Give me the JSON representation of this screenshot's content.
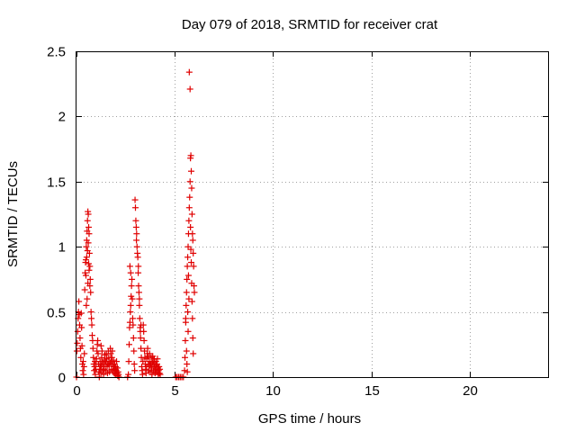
{
  "chart_data": {
    "type": "scatter",
    "title": "Day 079 of 2018, SRMTID for receiver crat",
    "xlabel": "GPS time / hours",
    "ylabel": "SRMTID / TECUs",
    "xlim": [
      0,
      24
    ],
    "ylim": [
      0,
      2.5
    ],
    "xticks": [
      0,
      5,
      10,
      15,
      20
    ],
    "xtick_labels": [
      "0",
      "5",
      "10",
      "15",
      "20"
    ],
    "yticks": [
      0,
      0.5,
      1,
      1.5,
      2,
      2.5
    ],
    "ytick_labels": [
      "0",
      "0.5",
      "1",
      "1.5",
      "2",
      "2.5"
    ],
    "grid": true,
    "marker": "+",
    "color": "#e00000",
    "series": [
      {
        "name": "SRMTID",
        "points": [
          [
            0.0,
            0.0
          ],
          [
            0.02,
            0.2
          ],
          [
            0.04,
            0.26
          ],
          [
            0.06,
            0.35
          ],
          [
            0.08,
            0.45
          ],
          [
            0.1,
            0.5
          ],
          [
            0.12,
            0.58
          ],
          [
            0.14,
            0.48
          ],
          [
            0.16,
            0.4
          ],
          [
            0.18,
            0.3
          ],
          [
            0.2,
            0.22
          ],
          [
            0.22,
            0.15
          ],
          [
            0.24,
            0.49
          ],
          [
            0.26,
            0.38
          ],
          [
            0.28,
            0.24
          ],
          [
            0.3,
            0.1
          ],
          [
            0.32,
            0.05
          ],
          [
            0.34,
            0.12
          ],
          [
            0.36,
            0.02
          ],
          [
            0.38,
            0.08
          ],
          [
            0.4,
            0.18
          ],
          [
            0.42,
            0.67
          ],
          [
            0.44,
            0.8
          ],
          [
            0.46,
            0.88
          ],
          [
            0.48,
            0.9
          ],
          [
            0.5,
            1.0
          ],
          [
            0.52,
            1.05
          ],
          [
            0.54,
            1.12
          ],
          [
            0.56,
            1.2
          ],
          [
            0.58,
            1.27
          ],
          [
            0.6,
            1.25
          ],
          [
            0.62,
            1.15
          ],
          [
            0.64,
            1.1
          ],
          [
            0.66,
            0.95
          ],
          [
            0.68,
            0.85
          ],
          [
            0.7,
            0.75
          ],
          [
            0.72,
            0.65
          ],
          [
            0.74,
            0.5
          ],
          [
            0.76,
            0.45
          ],
          [
            0.78,
            0.4
          ],
          [
            0.48,
            0.78
          ],
          [
            0.52,
            0.92
          ],
          [
            0.56,
            0.97
          ],
          [
            0.6,
            1.03
          ],
          [
            0.64,
            0.82
          ],
          [
            0.68,
            0.7
          ],
          [
            0.5,
            0.55
          ],
          [
            0.54,
            0.6
          ],
          [
            0.58,
            0.72
          ],
          [
            0.62,
            0.87
          ],
          [
            0.8,
            0.32
          ],
          [
            0.82,
            0.28
          ],
          [
            0.84,
            0.22
          ],
          [
            0.86,
            0.15
          ],
          [
            0.88,
            0.1
          ],
          [
            0.9,
            0.05
          ],
          [
            0.92,
            0.08
          ],
          [
            0.94,
            0.12
          ],
          [
            0.96,
            0.02
          ],
          [
            0.98,
            0.06
          ],
          [
            1.0,
            0.1
          ],
          [
            1.02,
            0.14
          ],
          [
            1.04,
            0.2
          ],
          [
            1.06,
            0.25
          ],
          [
            1.08,
            0.28
          ],
          [
            1.1,
            0.18
          ],
          [
            1.12,
            0.1
          ],
          [
            1.14,
            0.04
          ],
          [
            1.16,
            0.0
          ],
          [
            1.18,
            0.06
          ],
          [
            1.2,
            0.12
          ],
          [
            1.22,
            0.08
          ],
          [
            1.24,
            0.03
          ],
          [
            1.26,
            0.09
          ],
          [
            1.28,
            0.15
          ],
          [
            1.3,
            0.2
          ],
          [
            1.32,
            0.12
          ],
          [
            1.34,
            0.05
          ],
          [
            1.36,
            0.1
          ],
          [
            1.38,
            0.02
          ],
          [
            1.4,
            0.06
          ],
          [
            1.42,
            0.13
          ],
          [
            1.44,
            0.17
          ],
          [
            1.46,
            0.1
          ],
          [
            1.48,
            0.05
          ],
          [
            1.5,
            0.12
          ],
          [
            1.52,
            0.18
          ],
          [
            1.54,
            0.14
          ],
          [
            1.56,
            0.08
          ],
          [
            1.58,
            0.03
          ],
          [
            1.6,
            0.1
          ],
          [
            1.62,
            0.2
          ],
          [
            1.64,
            0.15
          ],
          [
            1.66,
            0.09
          ],
          [
            1.68,
            0.04
          ],
          [
            1.7,
            0.11
          ],
          [
            1.72,
            0.22
          ],
          [
            1.74,
            0.18
          ],
          [
            1.76,
            0.12
          ],
          [
            1.78,
            0.06
          ],
          [
            1.8,
            0.15
          ],
          [
            1.82,
            0.2
          ],
          [
            1.84,
            0.1
          ],
          [
            1.86,
            0.05
          ],
          [
            1.88,
            0.13
          ],
          [
            1.9,
            0.08
          ],
          [
            1.92,
            0.03
          ],
          [
            1.94,
            0.1
          ],
          [
            1.96,
            0.06
          ],
          [
            1.98,
            0.02
          ],
          [
            2.0,
            0.08
          ],
          [
            2.02,
            0.05
          ],
          [
            2.04,
            0.12
          ],
          [
            2.06,
            0.03
          ],
          [
            2.08,
            0.07
          ],
          [
            2.1,
            0.01
          ],
          [
            2.12,
            0.04
          ],
          [
            2.14,
            0.02
          ],
          [
            2.16,
            0.0
          ],
          [
            1.25,
            0.24
          ],
          [
            2.6,
            0.0
          ],
          [
            2.64,
            0.02
          ],
          [
            2.66,
            0.12
          ],
          [
            2.68,
            0.25
          ],
          [
            2.7,
            0.38
          ],
          [
            2.72,
            0.42
          ],
          [
            2.74,
            0.5
          ],
          [
            2.76,
            0.55
          ],
          [
            2.78,
            0.62
          ],
          [
            2.8,
            0.7
          ],
          [
            2.72,
            0.85
          ],
          [
            2.76,
            0.8
          ],
          [
            2.82,
            0.75
          ],
          [
            2.84,
            0.6
          ],
          [
            2.86,
            0.45
          ],
          [
            2.88,
            0.4
          ],
          [
            2.9,
            0.3
          ],
          [
            2.92,
            0.2
          ],
          [
            2.94,
            0.1
          ],
          [
            2.96,
            0.05
          ],
          [
            2.98,
            1.36
          ],
          [
            3.0,
            1.3
          ],
          [
            3.02,
            1.2
          ],
          [
            3.04,
            1.15
          ],
          [
            3.06,
            1.1
          ],
          [
            3.08,
            1.0
          ],
          [
            3.1,
            0.95
          ],
          [
            3.12,
            0.92
          ],
          [
            3.14,
            0.8
          ],
          [
            3.16,
            0.7
          ],
          [
            3.18,
            0.65
          ],
          [
            3.2,
            0.55
          ],
          [
            3.22,
            0.45
          ],
          [
            3.24,
            0.38
          ],
          [
            3.26,
            0.3
          ],
          [
            3.28,
            0.22
          ],
          [
            3.3,
            0.15
          ],
          [
            3.32,
            0.08
          ],
          [
            3.34,
            0.05
          ],
          [
            3.36,
            0.02
          ],
          [
            3.38,
            0.12
          ],
          [
            3.4,
            0.4
          ],
          [
            3.42,
            0.35
          ],
          [
            3.44,
            0.28
          ],
          [
            3.46,
            0.2
          ],
          [
            3.48,
            0.15
          ],
          [
            3.5,
            0.1
          ],
          [
            3.52,
            0.06
          ],
          [
            3.54,
            0.03
          ],
          [
            3.56,
            0.08
          ],
          [
            3.58,
            0.14
          ],
          [
            3.6,
            0.18
          ],
          [
            3.62,
            0.22
          ],
          [
            3.64,
            0.16
          ],
          [
            3.66,
            0.1
          ],
          [
            3.68,
            0.05
          ],
          [
            3.7,
            0.12
          ],
          [
            3.72,
            0.18
          ],
          [
            3.74,
            0.09
          ],
          [
            3.76,
            0.04
          ],
          [
            3.78,
            0.1
          ],
          [
            3.8,
            0.15
          ],
          [
            3.82,
            0.07
          ],
          [
            3.84,
            0.02
          ],
          [
            3.86,
            0.11
          ],
          [
            3.88,
            0.16
          ],
          [
            3.9,
            0.12
          ],
          [
            3.92,
            0.05
          ],
          [
            3.94,
            0.1
          ],
          [
            3.96,
            0.14
          ],
          [
            3.98,
            0.08
          ],
          [
            4.0,
            0.03
          ],
          [
            4.02,
            0.06
          ],
          [
            4.04,
            0.12
          ],
          [
            4.06,
            0.09
          ],
          [
            4.08,
            0.04
          ],
          [
            4.1,
            0.1
          ],
          [
            4.12,
            0.14
          ],
          [
            4.14,
            0.07
          ],
          [
            4.16,
            0.02
          ],
          [
            4.18,
            0.05
          ],
          [
            4.2,
            0.08
          ],
          [
            4.22,
            0.03
          ],
          [
            4.24,
            0.06
          ],
          [
            4.26,
            0.02
          ],
          [
            3.2,
            0.6
          ],
          [
            3.25,
            0.35
          ],
          [
            3.15,
            0.85
          ],
          [
            3.05,
            1.05
          ],
          [
            3.28,
            0.4
          ],
          [
            5.05,
            0.0
          ],
          [
            5.12,
            0.0
          ],
          [
            5.2,
            0.0
          ],
          [
            5.28,
            0.0
          ],
          [
            5.36,
            0.0
          ],
          [
            5.44,
            0.0
          ],
          [
            5.5,
            0.05
          ],
          [
            5.52,
            0.15
          ],
          [
            5.54,
            0.28
          ],
          [
            5.56,
            0.42
          ],
          [
            5.58,
            0.55
          ],
          [
            5.6,
            0.65
          ],
          [
            5.62,
            0.75
          ],
          [
            5.64,
            0.85
          ],
          [
            5.66,
            0.92
          ],
          [
            5.68,
            1.0
          ],
          [
            5.7,
            1.1
          ],
          [
            5.72,
            1.2
          ],
          [
            5.74,
            1.3
          ],
          [
            5.76,
            1.38
          ],
          [
            5.78,
            1.5
          ],
          [
            5.8,
            1.68
          ],
          [
            5.82,
            1.7
          ],
          [
            5.84,
            1.58
          ],
          [
            5.86,
            1.45
          ],
          [
            5.74,
            2.34
          ],
          [
            5.78,
            2.21
          ],
          [
            5.88,
            1.25
          ],
          [
            5.9,
            1.1
          ],
          [
            5.92,
            1.05
          ],
          [
            5.94,
            0.95
          ],
          [
            5.96,
            0.85
          ],
          [
            5.98,
            0.7
          ],
          [
            6.0,
            0.65
          ],
          [
            5.56,
            0.45
          ],
          [
            5.6,
            0.2
          ],
          [
            5.62,
            0.1
          ],
          [
            5.64,
            0.04
          ],
          [
            5.66,
            0.5
          ],
          [
            5.68,
            0.35
          ],
          [
            5.7,
            0.78
          ],
          [
            5.72,
            0.6
          ],
          [
            5.8,
            1.15
          ],
          [
            5.82,
            0.98
          ],
          [
            5.84,
            0.88
          ],
          [
            5.86,
            0.72
          ],
          [
            5.88,
            0.58
          ],
          [
            5.9,
            0.45
          ],
          [
            5.92,
            0.3
          ],
          [
            5.94,
            0.18
          ]
        ]
      }
    ]
  }
}
